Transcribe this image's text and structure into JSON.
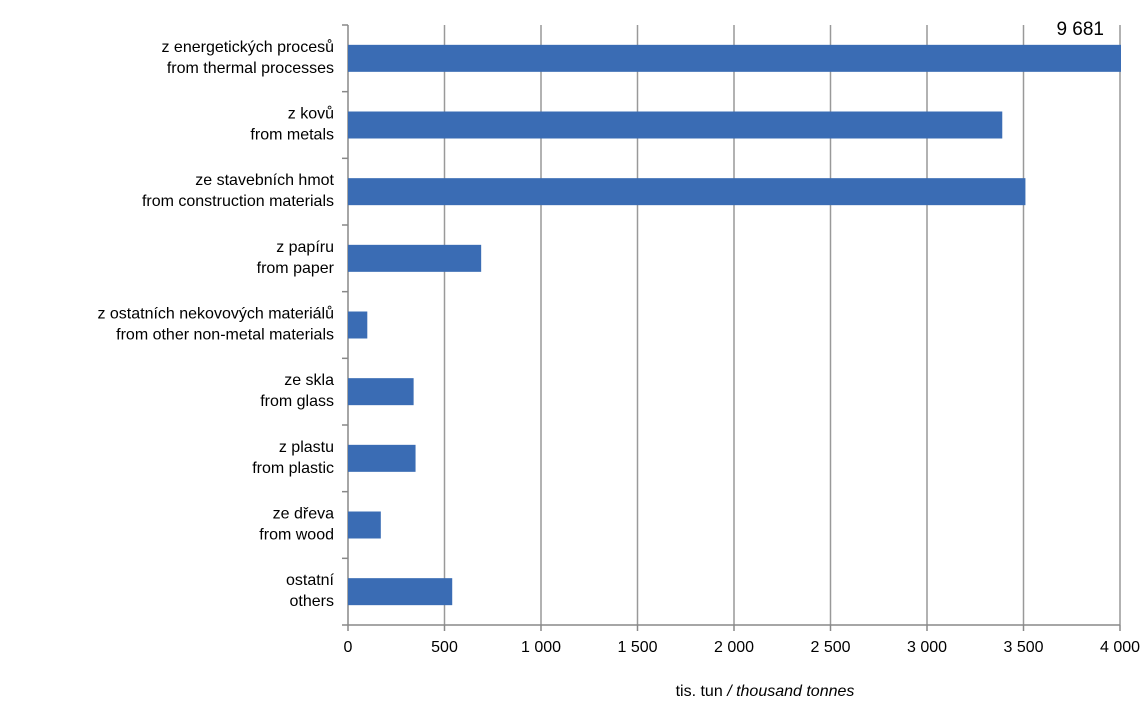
{
  "chart_data": {
    "type": "barh",
    "categories": [
      [
        "z energetických procesů",
        "from thermal processes"
      ],
      [
        "z kovů",
        "from metals"
      ],
      [
        "ze stavebních hmot",
        "from construction materials"
      ],
      [
        "z papíru",
        "from paper"
      ],
      [
        "z ostatních nekovových materiálů",
        "from other non-metal materials"
      ],
      [
        "ze skla",
        "from glass"
      ],
      [
        "z plastu",
        "from plastic"
      ],
      [
        "ze dřeva",
        "from wood"
      ],
      [
        "ostatní",
        "others"
      ]
    ],
    "values": [
      9681,
      3390,
      3510,
      690,
      100,
      340,
      350,
      170,
      540
    ],
    "value_labels": [
      "9 681",
      null,
      null,
      null,
      null,
      null,
      null,
      null,
      null
    ],
    "value_label_color": "#ff0000",
    "color": "#3a6cb4",
    "xlim": [
      0,
      4000
    ],
    "xticks": [
      0,
      500,
      {
        "value": 1000,
        "label": "1 000"
      },
      {
        "value": 1500,
        "label": "1 500"
      },
      {
        "value": 2000,
        "label": "2 000"
      },
      {
        "value": 2500,
        "label": "2 500"
      },
      {
        "value": 3000,
        "label": "3 000"
      },
      {
        "value": 3500,
        "label": "3 500"
      },
      {
        "value": 4000,
        "label": "4 000"
      }
    ],
    "grid": true,
    "x_label": "tis. tun",
    "x_label_en": "/ thousand tonnes"
  }
}
